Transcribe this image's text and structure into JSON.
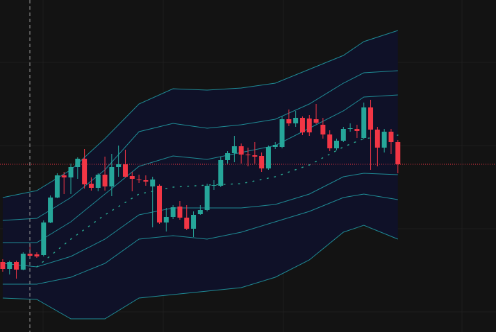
{
  "chart_data": {
    "type": "candlestick",
    "up_color": "#26a69a",
    "down_color": "#f23645",
    "band_color": "#1f8c96",
    "band_fill": "#0f1128",
    "middle_color": "#2aa58f",
    "last_price_color": "#f23645",
    "xlim": [
      -0.4,
      72.4
    ],
    "ylim": [
      0,
      479
    ],
    "open": [
      101,
      91,
      101,
      90,
      113,
      112,
      111,
      158,
      194,
      226,
      223,
      238,
      250,
      214,
      208,
      227,
      210,
      238,
      242,
      225,
      220,
      219,
      210,
      211,
      158,
      166,
      181,
      165,
      149,
      170,
      176,
      211,
      211,
      248,
      258,
      268,
      256,
      255,
      254,
      236,
      267,
      267,
      307,
      301,
      309,
      308,
      307,
      299,
      285,
      265,
      276,
      293,
      293,
      280,
      324,
      292,
      266,
      289,
      274
    ],
    "close": [
      91,
      101,
      90,
      113,
      110,
      109,
      158,
      194,
      226,
      223,
      238,
      250,
      213,
      208,
      227,
      210,
      238,
      242,
      224,
      221,
      219,
      217,
      220,
      158,
      166,
      180,
      165,
      149,
      169,
      176,
      211,
      212,
      248,
      258,
      268,
      256,
      255,
      253,
      236,
      267,
      270,
      307,
      301,
      309,
      288,
      288,
      302,
      285,
      265,
      276,
      293,
      294,
      290,
      324,
      292,
      266,
      289,
      274,
      242
    ],
    "high": [
      105,
      103,
      103,
      115,
      127,
      115,
      161,
      197,
      229,
      231,
      243,
      252,
      264,
      223,
      229,
      253,
      257,
      269,
      263,
      231,
      227,
      226,
      224,
      213,
      179,
      183,
      189,
      183,
      174,
      183,
      214,
      219,
      253,
      261,
      283,
      272,
      266,
      274,
      259,
      269,
      274,
      311,
      321,
      319,
      311,
      313,
      329,
      309,
      291,
      279,
      296,
      301,
      299,
      331,
      335,
      296,
      293,
      293,
      277
    ],
    "low": [
      87,
      83,
      77,
      89,
      107,
      107,
      109,
      157,
      193,
      199,
      199,
      221,
      207,
      204,
      203,
      204,
      196,
      224,
      223,
      203,
      215,
      211,
      151,
      156,
      145,
      163,
      162,
      147,
      137,
      169,
      174,
      205,
      209,
      243,
      245,
      243,
      239,
      243,
      231,
      234,
      264,
      265,
      297,
      296,
      284,
      283,
      300,
      279,
      261,
      262,
      274,
      289,
      280,
      278,
      234,
      239,
      259,
      257,
      229
    ],
    "bands": {
      "x": [
        0,
        5,
        10,
        15,
        20,
        25,
        30,
        35,
        40,
        45,
        50,
        53,
        58
      ],
      "lines": [
        [
          194,
          204,
          234,
          279,
          329,
          351,
          349,
          352,
          359,
          379,
          399,
          419,
          435
        ],
        [
          161,
          164,
          194,
          234,
          289,
          301,
          294,
          299,
          307,
          329,
          359,
          374,
          377
        ],
        [
          129,
          129,
          159,
          199,
          239,
          254,
          249,
          259,
          269,
          294,
          319,
          339,
          342
        ],
        [
          99,
          94,
          109,
          134,
          169,
          179,
          179,
          179,
          184,
          199,
          224,
          229,
          227
        ],
        [
          69,
          69,
          79,
          99,
          134,
          139,
          134,
          144,
          159,
          174,
          194,
          199,
          191
        ],
        [
          49,
          47,
          19,
          19,
          49,
          54,
          59,
          64,
          79,
          104,
          144,
          154,
          134
        ]
      ],
      "middle": [
        null,
        94,
        134,
        169,
        199,
        209,
        212,
        214,
        224,
        241,
        267,
        279,
        284
      ]
    }
  }
}
